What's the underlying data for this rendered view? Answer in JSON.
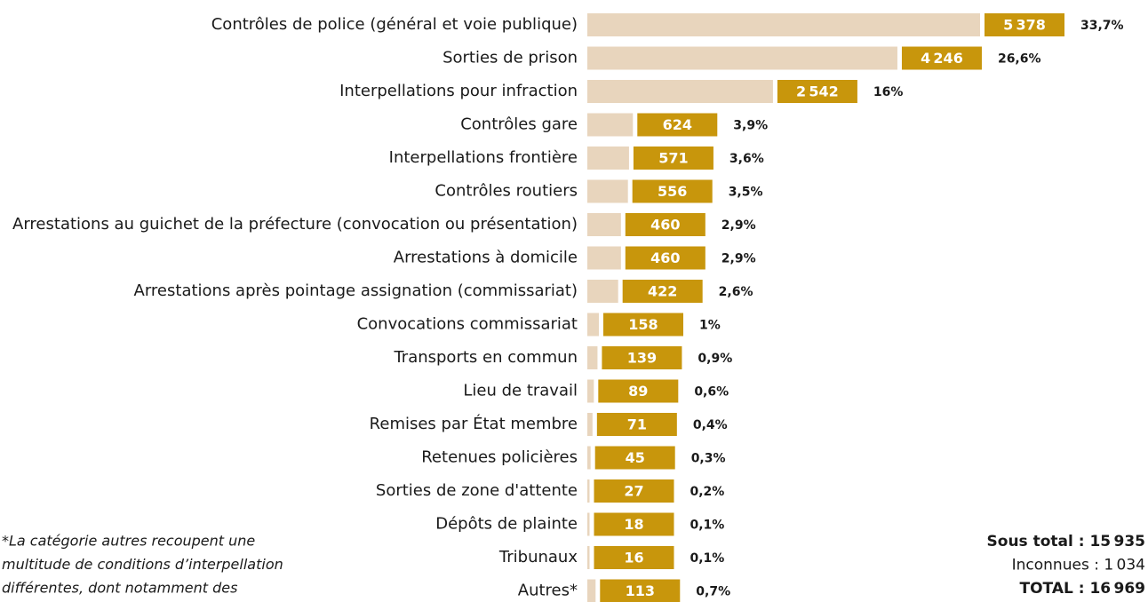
{
  "chart_data": {
    "type": "bar",
    "categories": [
      "Contrôles de police (général et voie publique)",
      "Sorties de prison",
      "Interpellations pour infraction",
      "Contrôles gare",
      "Interpellations frontière",
      "Contrôles routiers",
      "Arrestations au guichet de la préfecture (convocation ou présentation)",
      "Arrestations à domicile",
      "Arrestations après pointage assignation (commissariat)",
      "Convocations commissariat",
      "Transports en commun",
      "Lieu de travail",
      "Remises par État membre",
      "Retenues policières",
      "Sorties de zone d'attente",
      "Dépôts de plainte",
      "Tribunaux",
      "Autres*"
    ],
    "values": [
      5378,
      4246,
      2542,
      624,
      571,
      556,
      460,
      460,
      422,
      158,
      139,
      89,
      71,
      45,
      27,
      18,
      16,
      113
    ],
    "value_labels": [
      "5 378",
      "4 246",
      "2 542",
      "624",
      "571",
      "556",
      "460",
      "460",
      "422",
      "158",
      "139",
      "89",
      "71",
      "45",
      "27",
      "18",
      "16",
      "113"
    ],
    "shares": [
      33.7,
      26.6,
      16,
      3.9,
      3.6,
      3.5,
      2.9,
      2.9,
      2.6,
      1,
      0.9,
      0.6,
      0.4,
      0.3,
      0.2,
      0.1,
      0.1,
      0.7
    ],
    "share_labels": [
      "33,7%",
      "26,6%",
      "16%",
      "3,9%",
      "3,6%",
      "3,5%",
      "2,9%",
      "2,9%",
      "2,6%",
      "1%",
      "0,9%",
      "0,6%",
      "0,4%",
      "0,3%",
      "0,2%",
      "0,1%",
      "0,1%",
      "0,7%"
    ],
    "bar_color": "#e8d5bd",
    "label_color": "#c8960c",
    "footnote": [
      "*La catégorie autres recoupent une",
      "multitude de conditions d’interpellation",
      "différentes, dont notamment des"
    ],
    "totals": [
      "Sous total : 15 935",
      "Inconnues : 1 034",
      "TOTAL : 16 969"
    ]
  }
}
